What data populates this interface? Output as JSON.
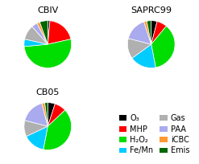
{
  "chart_data": [
    {
      "type": "pie",
      "title": "CBIV",
      "categories": [
        "O₃",
        "MHP",
        "H₂O₂",
        "Fe/Mn",
        "Gas",
        "PAA",
        "iCBC",
        "Emis"
      ],
      "values": [
        1.5,
        20,
        52,
        5,
        10,
        4,
        2,
        5.5
      ],
      "colors": [
        "#000000",
        "#ff0000",
        "#00dd00",
        "#00ccff",
        "#b0b0b0",
        "#aaaaee",
        "#ff9933",
        "#006600"
      ],
      "legend": "lower right"
    },
    {
      "type": "pie",
      "title": "SAPRC99",
      "categories": [
        "O₃",
        "MHP",
        "H₂O₂",
        "Fe/Mn",
        "Gas",
        "PAA",
        "iCBC",
        "Emis"
      ],
      "values": [
        4,
        7,
        36,
        18,
        14,
        16,
        2,
        3
      ],
      "colors": [
        "#000000",
        "#ff0000",
        "#00dd00",
        "#00ccff",
        "#b0b0b0",
        "#aaaaee",
        "#ff9933",
        "#006600"
      ]
    },
    {
      "type": "pie",
      "title": "CB05",
      "categories": [
        "O₃",
        "MHP",
        "H₂O₂",
        "Fe/Mn",
        "Gas",
        "PAA",
        "iCBC",
        "Emis"
      ],
      "values": [
        5,
        8,
        40,
        15,
        11,
        17,
        2,
        2
      ],
      "colors": [
        "#000000",
        "#ff0000",
        "#00dd00",
        "#00ccff",
        "#b0b0b0",
        "#aaaaee",
        "#ff9933",
        "#006600"
      ]
    }
  ]
}
